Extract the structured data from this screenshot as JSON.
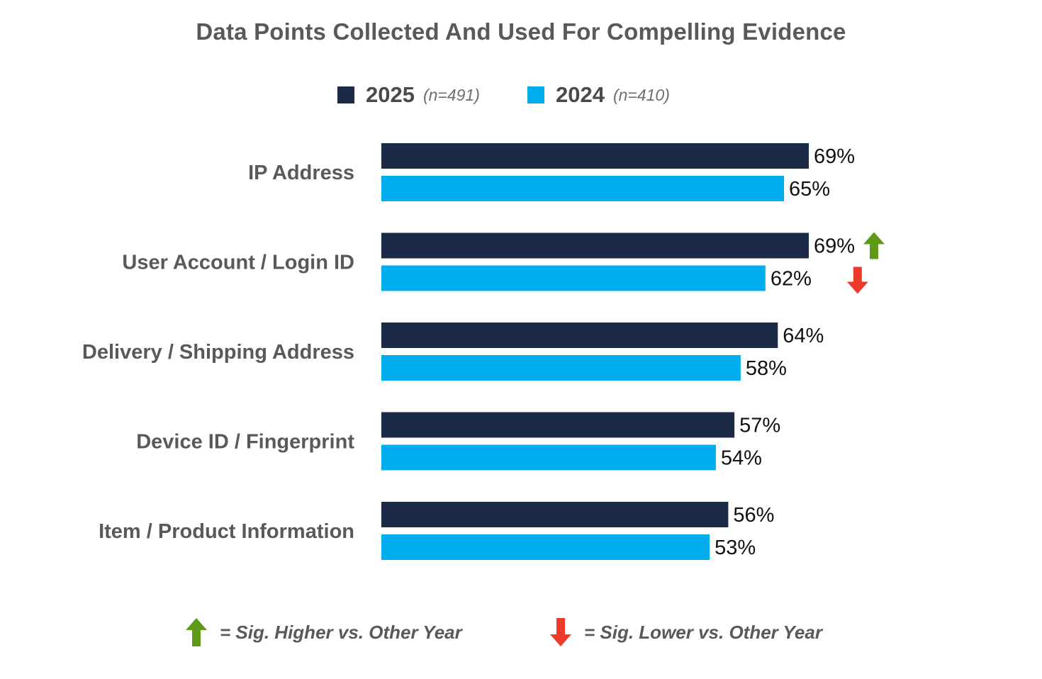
{
  "chart_data": {
    "type": "bar",
    "orientation": "horizontal",
    "title": "Data Points Collected And Used For Compelling Evidence",
    "categories": [
      "IP Address",
      "User Account / Login ID",
      "Delivery / Shipping Address",
      "Device ID / Fingerprint",
      "Item / Product Information"
    ],
    "series": [
      {
        "name": "2025",
        "sample": "(n=491)",
        "color": "#1b2a47",
        "values": [
          69,
          69,
          64,
          57,
          56
        ],
        "labels": [
          "69%",
          "69%",
          "64%",
          "57%",
          "56%"
        ],
        "significance": [
          "",
          "higher",
          "",
          "",
          ""
        ]
      },
      {
        "name": "2024",
        "sample": "(n=410)",
        "color": "#00aeef",
        "values": [
          65,
          62,
          58,
          54,
          53
        ],
        "labels": [
          "65%",
          "62%",
          "58%",
          "54%",
          "53%"
        ],
        "significance": [
          "",
          "lower",
          "",
          "",
          ""
        ]
      }
    ],
    "xlim": [
      0,
      100
    ],
    "grid": false,
    "legend_position": "top"
  },
  "sig_legend": {
    "higher_label": "= Sig. Higher vs. Other Year",
    "lower_label": "= Sig. Lower vs. Other Year",
    "higher_color": "#5e9a18",
    "lower_color": "#ee3a2b"
  }
}
